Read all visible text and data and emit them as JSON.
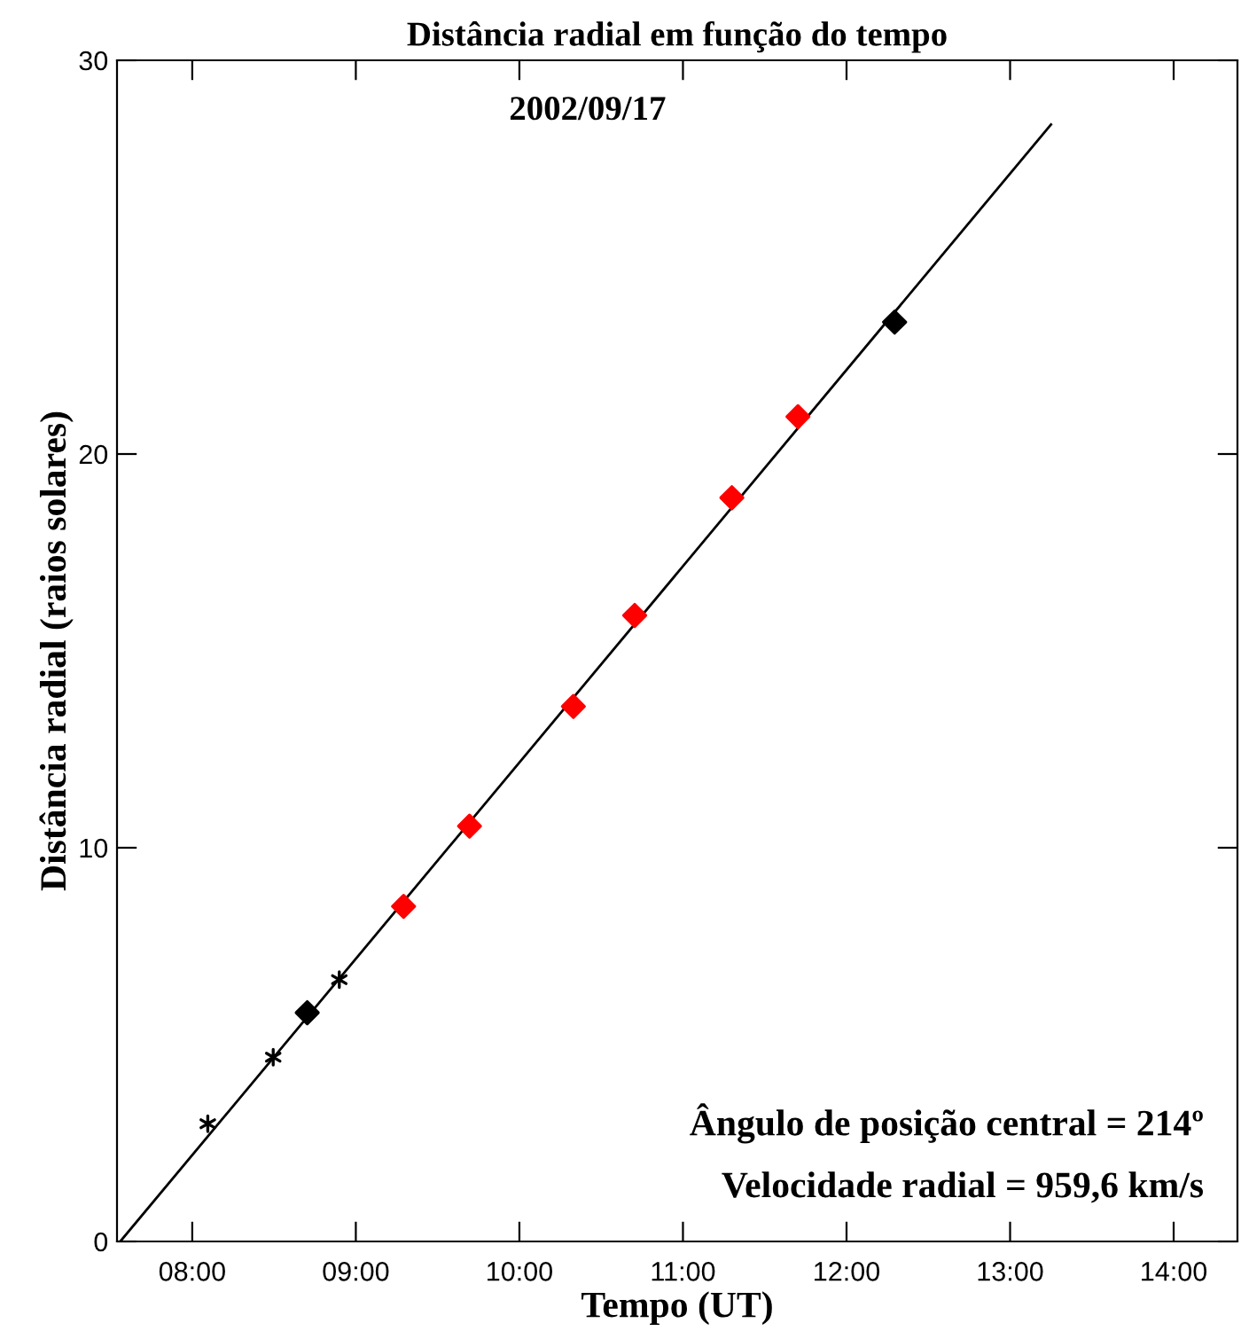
{
  "chart_data": {
    "type": "scatter",
    "title": "Distância radial em função do tempo",
    "subtitle": "2002/09/17",
    "xlabel": "Tempo (UT)",
    "ylabel": "Distância radial (raios solares)",
    "annotations": [
      "Ângulo de posição central = 214º",
      "Velocidade radial = 959,6 km/s"
    ],
    "xlim": [
      7.54,
      14.39
    ],
    "ylim": [
      0,
      30
    ],
    "xticks": [
      {
        "value": 8,
        "label": "08:00"
      },
      {
        "value": 9,
        "label": "09:00"
      },
      {
        "value": 10,
        "label": "10:00"
      },
      {
        "value": 11,
        "label": "11:00"
      },
      {
        "value": 12,
        "label": "12:00"
      },
      {
        "value": 13,
        "label": "13:00"
      },
      {
        "value": 14,
        "label": "14:00"
      }
    ],
    "yticks": [
      0,
      10,
      20,
      30
    ],
    "grid": false,
    "series": [
      {
        "type": "line",
        "color": "#000000",
        "marker": "none",
        "x": [
          7.56,
          13.25
        ],
        "values": [
          0,
          28.37
        ]
      },
      {
        "color": "#000000",
        "marker": "cross",
        "x": [
          8.095,
          8.495,
          8.899
        ],
        "values": [
          2.99,
          4.68,
          6.65
        ]
      },
      {
        "color": "#000000",
        "marker": "diamond",
        "x": [
          8.703,
          12.294
        ],
        "values": [
          5.81,
          23.35
        ]
      },
      {
        "color": "#ff0000",
        "marker": "diamond",
        "x": [
          9.292,
          9.695,
          10.33,
          10.705,
          11.299,
          11.703
        ],
        "values": [
          8.51,
          10.55,
          13.59,
          15.9,
          18.89,
          20.95
        ]
      }
    ]
  }
}
